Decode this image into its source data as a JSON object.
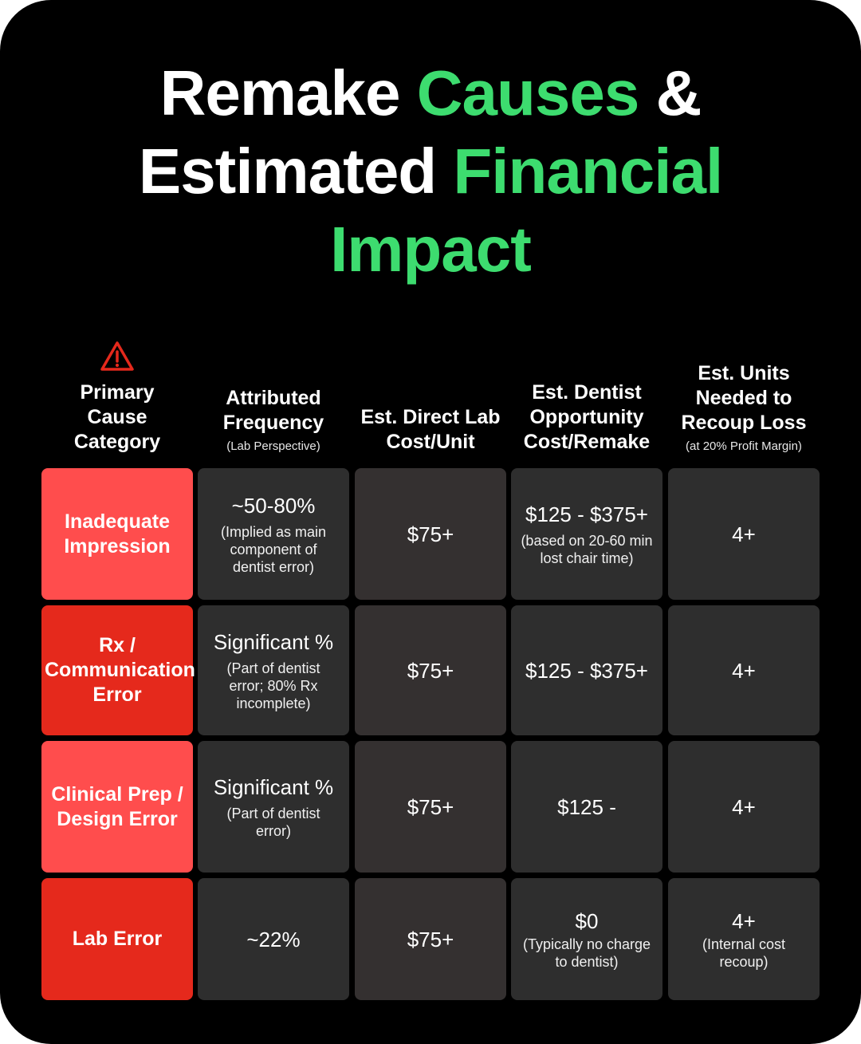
{
  "title": {
    "line1": [
      "Remake",
      "Causes",
      "&"
    ],
    "line2": [
      "Estimated",
      "Financial"
    ],
    "line3": "Impact"
  },
  "headers": [
    {
      "main": "Primary Cause Category",
      "sub": "",
      "icon": "warning-triangle-icon"
    },
    {
      "main": "Attributed Frequency",
      "sub": "(Lab Perspective)"
    },
    {
      "main": "Est. Direct Lab Cost/Unit",
      "sub": ""
    },
    {
      "main": "Est. Dentist Opportunity Cost/Remake",
      "sub": ""
    },
    {
      "main": "Est. Units Needed to Recoup Loss",
      "sub": "(at 20% Profit Margin)"
    }
  ],
  "rows": [
    {
      "cause": "Inadequate Impression",
      "frequency": {
        "value": "~50-80%",
        "note": "(Implied as main component of dentist error)"
      },
      "lab_cost": {
        "value": "$75+",
        "note": ""
      },
      "opportunity": {
        "value": "$125 - $375+",
        "note": "(based on 20-60 min lost chair time)"
      },
      "units": {
        "value": "4+",
        "note": ""
      }
    },
    {
      "cause": "Rx / Communication Error",
      "frequency": {
        "value": "Significant %",
        "note": "(Part of dentist error; 80% Rx incomplete)"
      },
      "lab_cost": {
        "value": "$75+",
        "note": ""
      },
      "opportunity": {
        "value": "$125 - $375+",
        "note": ""
      },
      "units": {
        "value": "4+",
        "note": ""
      }
    },
    {
      "cause": "Clinical Prep / Design Error",
      "frequency": {
        "value": "Significant %",
        "note": "(Part of dentist error)"
      },
      "lab_cost": {
        "value": "$75+",
        "note": ""
      },
      "opportunity": {
        "value": "$125 -",
        "note": ""
      },
      "units": {
        "value": "4+",
        "note": ""
      }
    },
    {
      "cause": "Lab Error",
      "frequency": {
        "value": "~22%",
        "note": ""
      },
      "lab_cost": {
        "value": "$75+",
        "note": ""
      },
      "opportunity": {
        "value": "$0",
        "note": "(Typically no charge to dentist)"
      },
      "units": {
        "value": "4+",
        "note": "(Internal cost recoup)"
      }
    }
  ],
  "colors": {
    "accent_green": "#3ddc6f",
    "cause_light": "#ff4d4d",
    "cause_dark": "#e5291c",
    "cell_bg": "#2e2e2e",
    "background": "#000000",
    "warning_icon": "#e5291c"
  }
}
